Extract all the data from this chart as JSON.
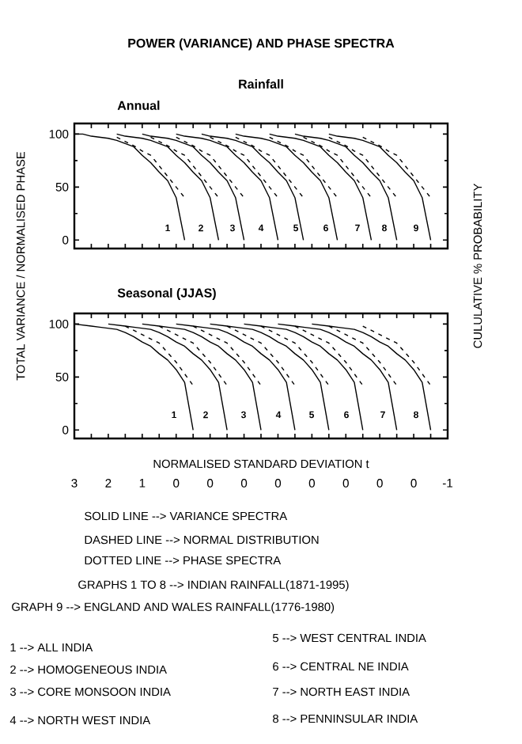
{
  "chart_data": [
    {
      "type": "line",
      "title": "Annual",
      "ylabel": "TOTAL VARIANCE / NORMALISED PHASE",
      "y2label": "CULULATIVE % PROBABILITY",
      "categories": [
        "3",
        null,
        null,
        null,
        "2",
        null,
        null,
        null,
        "1",
        null,
        null,
        null,
        "0",
        null,
        null,
        null,
        "0",
        null,
        null,
        null,
        "0",
        null,
        null,
        null,
        "0",
        null,
        null,
        null,
        "0",
        null,
        null,
        null,
        "0",
        null,
        null,
        null,
        "0",
        null,
        null,
        null,
        "0",
        null,
        null,
        null,
        "-1"
      ],
      "ylim": [
        -8,
        110
      ],
      "tick_labels": "y",
      "yticks": [
        0,
        50,
        100
      ],
      "series": [
        {
          "color": "#000000",
          "line_style": "solid",
          "values": [
            100,
            100,
            98,
            97,
            96,
            94,
            91,
            88,
            80,
            73,
            64,
            56,
            40,
            0,
            null,
            null,
            null,
            null,
            null,
            null,
            null,
            null,
            null,
            null,
            null,
            null,
            null,
            null,
            null,
            null,
            null,
            null,
            null,
            null,
            null,
            null,
            null,
            null,
            null,
            null,
            null,
            null,
            null,
            null,
            null
          ]
        },
        {
          "color": "#000000",
          "line_style": "dashed",
          "values": [
            null,
            null,
            null,
            null,
            null,
            97,
            93,
            89,
            84,
            80,
            70,
            60,
            50,
            40,
            null,
            null,
            null,
            null,
            null,
            null,
            null,
            null,
            null,
            null,
            null,
            null,
            null,
            null,
            null,
            null,
            null,
            null,
            null,
            null,
            null,
            null,
            null,
            null,
            null,
            null,
            null,
            null,
            null,
            null,
            null
          ]
        },
        {
          "color": "#000000",
          "line_style": "solid",
          "values": [
            null,
            null,
            null,
            null,
            null,
            100,
            98,
            97,
            96,
            94,
            91,
            88,
            80,
            73,
            64,
            56,
            40,
            0,
            null,
            null,
            null,
            null,
            null,
            null,
            null,
            null,
            null,
            null,
            null,
            null,
            null,
            null,
            null,
            null,
            null,
            null,
            null,
            null,
            null,
            null,
            null,
            null,
            null,
            null,
            null
          ]
        },
        {
          "color": "#000000",
          "line_style": "dashed",
          "values": [
            null,
            null,
            null,
            null,
            null,
            null,
            null,
            null,
            null,
            97,
            93,
            89,
            84,
            80,
            70,
            60,
            50,
            40,
            null,
            null,
            null,
            null,
            null,
            null,
            null,
            null,
            null,
            null,
            null,
            null,
            null,
            null,
            null,
            null,
            null,
            null,
            null,
            null,
            null,
            null,
            null,
            null,
            null,
            null,
            null
          ]
        },
        {
          "color": "#000000",
          "line_style": "solid",
          "values": [
            null,
            null,
            null,
            null,
            null,
            null,
            null,
            null,
            100,
            98,
            97,
            96,
            94,
            91,
            88,
            80,
            73,
            64,
            56,
            40,
            0,
            null,
            null,
            null,
            null,
            null,
            null,
            null,
            null,
            null,
            null,
            null,
            null,
            null,
            null,
            null,
            null,
            null,
            null,
            null,
            null,
            null,
            null,
            null,
            null
          ]
        },
        {
          "color": "#000000",
          "line_style": "dashed",
          "values": [
            null,
            null,
            null,
            null,
            null,
            null,
            null,
            null,
            null,
            null,
            null,
            null,
            97,
            93,
            89,
            84,
            80,
            70,
            60,
            50,
            40,
            null,
            null,
            null,
            null,
            null,
            null,
            null,
            null,
            null,
            null,
            null,
            null,
            null,
            null,
            null,
            null,
            null,
            null,
            null,
            null,
            null,
            null,
            null,
            null
          ]
        },
        {
          "color": "#000000",
          "line_style": "solid",
          "values": [
            null,
            null,
            null,
            null,
            null,
            null,
            null,
            null,
            null,
            null,
            null,
            null,
            100,
            98,
            97,
            96,
            94,
            91,
            88,
            80,
            73,
            64,
            56,
            40,
            0,
            null,
            null,
            null,
            null,
            null,
            null,
            null,
            null,
            null,
            null,
            null,
            null,
            null,
            null,
            null,
            null,
            null,
            null,
            null,
            null
          ]
        },
        {
          "color": "#000000",
          "line_style": "dashed",
          "values": [
            null,
            null,
            null,
            null,
            null,
            null,
            null,
            null,
            null,
            null,
            null,
            null,
            null,
            null,
            null,
            null,
            97,
            93,
            89,
            84,
            80,
            70,
            60,
            50,
            40,
            null,
            null,
            null,
            null,
            null,
            null,
            null,
            null,
            null,
            null,
            null,
            null,
            null,
            null,
            null,
            null,
            null,
            null,
            null,
            null
          ]
        },
        {
          "color": "#000000",
          "line_style": "solid",
          "values": [
            null,
            null,
            null,
            null,
            null,
            null,
            null,
            null,
            null,
            null,
            null,
            null,
            null,
            null,
            null,
            100,
            98,
            97,
            96,
            94,
            91,
            88,
            80,
            73,
            64,
            56,
            40,
            0,
            null,
            null,
            null,
            null,
            null,
            null,
            null,
            null,
            null,
            null,
            null,
            null,
            null,
            null,
            null,
            null,
            null
          ]
        },
        {
          "color": "#000000",
          "line_style": "dashed",
          "values": [
            null,
            null,
            null,
            null,
            null,
            null,
            null,
            null,
            null,
            null,
            null,
            null,
            null,
            null,
            null,
            null,
            null,
            null,
            null,
            97,
            93,
            89,
            84,
            80,
            70,
            60,
            50,
            40,
            null,
            null,
            null,
            null,
            null,
            null,
            null,
            null,
            null,
            null,
            null,
            null,
            null,
            null,
            null,
            null,
            null
          ]
        },
        {
          "color": "#000000",
          "line_style": "solid",
          "values": [
            null,
            null,
            null,
            null,
            null,
            null,
            null,
            null,
            null,
            null,
            null,
            null,
            null,
            null,
            null,
            null,
            null,
            null,
            null,
            100,
            98,
            97,
            96,
            94,
            91,
            88,
            80,
            73,
            64,
            56,
            40,
            0,
            null,
            null,
            null,
            null,
            null,
            null,
            null,
            null,
            null,
            null,
            null,
            null,
            null
          ]
        },
        {
          "color": "#000000",
          "line_style": "dashed",
          "values": [
            null,
            null,
            null,
            null,
            null,
            null,
            null,
            null,
            null,
            null,
            null,
            null,
            null,
            null,
            null,
            null,
            null,
            null,
            null,
            null,
            null,
            null,
            null,
            97,
            93,
            89,
            84,
            80,
            70,
            60,
            50,
            40,
            null,
            null,
            null,
            null,
            null,
            null,
            null,
            null,
            null,
            null,
            null,
            null,
            null
          ]
        },
        {
          "color": "#000000",
          "line_style": "solid",
          "values": [
            null,
            null,
            null,
            null,
            null,
            null,
            null,
            null,
            null,
            null,
            null,
            null,
            null,
            null,
            null,
            null,
            null,
            null,
            null,
            null,
            null,
            null,
            null,
            100,
            98,
            97,
            96,
            94,
            91,
            88,
            80,
            73,
            64,
            56,
            40,
            0,
            null,
            null,
            null,
            null,
            null,
            null,
            null,
            null,
            null
          ]
        },
        {
          "color": "#000000",
          "line_style": "dashed",
          "values": [
            null,
            null,
            null,
            null,
            null,
            null,
            null,
            null,
            null,
            null,
            null,
            null,
            null,
            null,
            null,
            null,
            null,
            null,
            null,
            null,
            null,
            null,
            null,
            null,
            null,
            null,
            null,
            97,
            93,
            89,
            84,
            80,
            70,
            60,
            50,
            40,
            null,
            null,
            null,
            null,
            null,
            null,
            null,
            null,
            null
          ]
        },
        {
          "color": "#000000",
          "line_style": "solid",
          "values": [
            null,
            null,
            null,
            null,
            null,
            null,
            null,
            null,
            null,
            null,
            null,
            null,
            null,
            null,
            null,
            null,
            null,
            null,
            null,
            null,
            null,
            null,
            null,
            null,
            null,
            null,
            100,
            98,
            97,
            96,
            94,
            91,
            88,
            80,
            73,
            64,
            56,
            40,
            0,
            null,
            null,
            null,
            null,
            null,
            null
          ]
        },
        {
          "color": "#000000",
          "line_style": "dashed",
          "values": [
            null,
            null,
            null,
            null,
            null,
            null,
            null,
            null,
            null,
            null,
            null,
            null,
            null,
            null,
            null,
            null,
            null,
            null,
            null,
            null,
            null,
            null,
            null,
            null,
            null,
            null,
            null,
            null,
            null,
            null,
            97,
            93,
            89,
            84,
            80,
            70,
            60,
            50,
            40,
            null,
            null,
            null,
            null,
            null,
            null
          ]
        },
        {
          "color": "#000000",
          "line_style": "solid",
          "values": [
            null,
            null,
            null,
            null,
            null,
            null,
            null,
            null,
            null,
            null,
            null,
            null,
            null,
            null,
            null,
            null,
            null,
            null,
            null,
            null,
            null,
            null,
            null,
            null,
            null,
            null,
            null,
            null,
            null,
            null,
            100,
            98,
            97,
            96,
            94,
            91,
            88,
            80,
            73,
            64,
            56,
            40,
            0,
            null,
            null
          ]
        },
        {
          "color": "#000000",
          "line_style": "dashed",
          "values": [
            null,
            null,
            null,
            null,
            null,
            null,
            null,
            null,
            null,
            null,
            null,
            null,
            null,
            null,
            null,
            null,
            null,
            null,
            null,
            null,
            null,
            null,
            null,
            null,
            null,
            null,
            null,
            null,
            null,
            null,
            null,
            null,
            null,
            null,
            97,
            93,
            89,
            84,
            80,
            70,
            60,
            50,
            40,
            null,
            null
          ]
        }
      ],
      "annotations": [
        "POWER (VARIANCE) AND PHASE SPECTRA",
        "Rainfall",
        "1",
        "2",
        "3",
        "4",
        "5",
        "6",
        "7",
        "8",
        "9"
      ]
    },
    {
      "type": "line",
      "title": "Seasonal (JJAS)",
      "xlabel": "NORMALISED STANDARD DEVIATION t",
      "categories": [
        "3",
        null,
        null,
        null,
        "2",
        null,
        null,
        null,
        "1",
        null,
        null,
        null,
        "0",
        null,
        null,
        null,
        "0",
        null,
        null,
        null,
        "0",
        null,
        null,
        null,
        "0",
        null,
        null,
        null,
        "0",
        null,
        null,
        null,
        "0",
        null,
        null,
        null,
        "0",
        null,
        null,
        null,
        "0",
        null,
        null,
        null,
        "-1"
      ],
      "ylim": [
        -8,
        110
      ],
      "yticks": [
        0,
        50,
        100
      ],
      "series": [
        {
          "color": "#000000",
          "line_style": "solid",
          "values": [
            100,
            99,
            98,
            97,
            96,
            95,
            92,
            88,
            83,
            79,
            72,
            66,
            57,
            45,
            0,
            null,
            null,
            null,
            null,
            null,
            null,
            null,
            null,
            null,
            null,
            null,
            null,
            null,
            null,
            null,
            null,
            null,
            null,
            null,
            null,
            null,
            null,
            null,
            null,
            null,
            null,
            null,
            null,
            null,
            null
          ]
        },
        {
          "color": "#000000",
          "line_style": "dashed",
          "values": [
            null,
            null,
            null,
            null,
            null,
            null,
            98,
            94,
            90,
            86,
            82,
            73,
            64,
            53,
            42,
            null,
            null,
            null,
            null,
            null,
            null,
            null,
            null,
            null,
            null,
            null,
            null,
            null,
            null,
            null,
            null,
            null,
            null,
            null,
            null,
            null,
            null,
            null,
            null,
            null,
            null,
            null,
            null,
            null,
            null
          ]
        },
        {
          "color": "#000000",
          "line_style": "solid",
          "values": [
            null,
            null,
            null,
            null,
            100,
            99,
            98,
            97,
            96,
            95,
            92,
            88,
            83,
            79,
            72,
            66,
            57,
            45,
            0,
            null,
            null,
            null,
            null,
            null,
            null,
            null,
            null,
            null,
            null,
            null,
            null,
            null,
            null,
            null,
            null,
            null,
            null,
            null,
            null,
            null,
            null,
            null,
            null,
            null,
            null
          ]
        },
        {
          "color": "#000000",
          "line_style": "dashed",
          "values": [
            null,
            null,
            null,
            null,
            null,
            null,
            null,
            null,
            null,
            null,
            98,
            94,
            90,
            86,
            82,
            73,
            64,
            53,
            42,
            null,
            null,
            null,
            null,
            null,
            null,
            null,
            null,
            null,
            null,
            null,
            null,
            null,
            null,
            null,
            null,
            null,
            null,
            null,
            null,
            null,
            null,
            null,
            null,
            null,
            null
          ]
        },
        {
          "color": "#000000",
          "line_style": "solid",
          "values": [
            null,
            null,
            null,
            null,
            null,
            null,
            null,
            null,
            100,
            99,
            98,
            97,
            96,
            95,
            92,
            88,
            83,
            79,
            72,
            66,
            57,
            45,
            0,
            null,
            null,
            null,
            null,
            null,
            null,
            null,
            null,
            null,
            null,
            null,
            null,
            null,
            null,
            null,
            null,
            null,
            null,
            null,
            null,
            null,
            null
          ]
        },
        {
          "color": "#000000",
          "line_style": "dashed",
          "values": [
            null,
            null,
            null,
            null,
            null,
            null,
            null,
            null,
            null,
            null,
            null,
            null,
            null,
            null,
            98,
            94,
            90,
            86,
            82,
            73,
            64,
            53,
            42,
            null,
            null,
            null,
            null,
            null,
            null,
            null,
            null,
            null,
            null,
            null,
            null,
            null,
            null,
            null,
            null,
            null,
            null,
            null,
            null,
            null,
            null
          ]
        },
        {
          "color": "#000000",
          "line_style": "solid",
          "values": [
            null,
            null,
            null,
            null,
            null,
            null,
            null,
            null,
            null,
            null,
            null,
            null,
            100,
            99,
            98,
            97,
            96,
            95,
            92,
            88,
            83,
            79,
            72,
            66,
            57,
            45,
            0,
            null,
            null,
            null,
            null,
            null,
            null,
            null,
            null,
            null,
            null,
            null,
            null,
            null,
            null,
            null,
            null,
            null,
            null
          ]
        },
        {
          "color": "#000000",
          "line_style": "dashed",
          "values": [
            null,
            null,
            null,
            null,
            null,
            null,
            null,
            null,
            null,
            null,
            null,
            null,
            null,
            null,
            null,
            null,
            null,
            null,
            98,
            94,
            90,
            86,
            82,
            73,
            64,
            53,
            42,
            null,
            null,
            null,
            null,
            null,
            null,
            null,
            null,
            null,
            null,
            null,
            null,
            null,
            null,
            null,
            null,
            null,
            null
          ]
        },
        {
          "color": "#000000",
          "line_style": "solid",
          "values": [
            null,
            null,
            null,
            null,
            null,
            null,
            null,
            null,
            null,
            null,
            null,
            null,
            null,
            null,
            null,
            null,
            100,
            99,
            98,
            97,
            96,
            95,
            92,
            88,
            83,
            79,
            72,
            66,
            57,
            45,
            0,
            null,
            null,
            null,
            null,
            null,
            null,
            null,
            null,
            null,
            null,
            null,
            null,
            null,
            null
          ]
        },
        {
          "color": "#000000",
          "line_style": "dashed",
          "values": [
            null,
            null,
            null,
            null,
            null,
            null,
            null,
            null,
            null,
            null,
            null,
            null,
            null,
            null,
            null,
            null,
            null,
            null,
            null,
            null,
            null,
            null,
            98,
            94,
            90,
            86,
            82,
            73,
            64,
            53,
            42,
            null,
            null,
            null,
            null,
            null,
            null,
            null,
            null,
            null,
            null,
            null,
            null,
            null,
            null
          ]
        },
        {
          "color": "#000000",
          "line_style": "solid",
          "values": [
            null,
            null,
            null,
            null,
            null,
            null,
            null,
            null,
            null,
            null,
            null,
            null,
            null,
            null,
            null,
            null,
            null,
            null,
            null,
            null,
            100,
            99,
            98,
            97,
            96,
            95,
            92,
            88,
            83,
            79,
            72,
            66,
            57,
            45,
            0,
            null,
            null,
            null,
            null,
            null,
            null,
            null,
            null,
            null,
            null
          ]
        },
        {
          "color": "#000000",
          "line_style": "dashed",
          "values": [
            null,
            null,
            null,
            null,
            null,
            null,
            null,
            null,
            null,
            null,
            null,
            null,
            null,
            null,
            null,
            null,
            null,
            null,
            null,
            null,
            null,
            null,
            null,
            null,
            null,
            null,
            98,
            94,
            90,
            86,
            82,
            73,
            64,
            53,
            42,
            null,
            null,
            null,
            null,
            null,
            null,
            null,
            null,
            null,
            null
          ]
        },
        {
          "color": "#000000",
          "line_style": "solid",
          "values": [
            null,
            null,
            null,
            null,
            null,
            null,
            null,
            null,
            null,
            null,
            null,
            null,
            null,
            null,
            null,
            null,
            null,
            null,
            null,
            null,
            null,
            null,
            null,
            null,
            100,
            99,
            98,
            97,
            96,
            95,
            92,
            88,
            83,
            79,
            72,
            66,
            57,
            45,
            0,
            null,
            null,
            null,
            null,
            null,
            null
          ]
        },
        {
          "color": "#000000",
          "line_style": "dashed",
          "values": [
            null,
            null,
            null,
            null,
            null,
            null,
            null,
            null,
            null,
            null,
            null,
            null,
            null,
            null,
            null,
            null,
            null,
            null,
            null,
            null,
            null,
            null,
            null,
            null,
            null,
            null,
            null,
            null,
            null,
            null,
            98,
            94,
            90,
            86,
            82,
            73,
            64,
            53,
            42,
            null,
            null,
            null,
            null,
            null,
            null
          ]
        },
        {
          "color": "#000000",
          "line_style": "solid",
          "values": [
            null,
            null,
            null,
            null,
            null,
            null,
            null,
            null,
            null,
            null,
            null,
            null,
            null,
            null,
            null,
            null,
            null,
            null,
            null,
            null,
            null,
            null,
            null,
            null,
            null,
            null,
            null,
            null,
            100,
            99,
            98,
            97,
            96,
            95,
            92,
            88,
            83,
            79,
            72,
            66,
            57,
            45,
            0,
            null,
            null
          ]
        },
        {
          "color": "#000000",
          "line_style": "dashed",
          "values": [
            null,
            null,
            null,
            null,
            null,
            null,
            null,
            null,
            null,
            null,
            null,
            null,
            null,
            null,
            null,
            null,
            null,
            null,
            null,
            null,
            null,
            null,
            null,
            null,
            null,
            null,
            null,
            null,
            null,
            null,
            null,
            null,
            null,
            null,
            98,
            94,
            90,
            86,
            82,
            73,
            64,
            53,
            42,
            null,
            null
          ]
        }
      ],
      "annotations": [
        "1",
        "2",
        "3",
        "4",
        "5",
        "6",
        "7",
        "8",
        "SOLID LINE --> VARIANCE SPECTRA",
        "DASHED LINE --> NORMAL DISTRIBUTION",
        "DOTTED LINE --> PHASE SPECTRA",
        "GRAPHS 1 TO 8 --> INDIAN RAINFALL(1871-1995)",
        "GRAPH 9 --> ENGLAND AND WALES RAINFALL(1776-1980)",
        "1 --> ALL INDIA",
        "2 --> HOMOGENEOUS INDIA",
        "3 --> CORE MONSOON INDIA",
        "4 --> NORTH WEST INDIA",
        "5 --> WEST CENTRAL INDIA",
        "6 --> CENTRAL NE INDIA",
        "7 --> NORTH EAST INDIA",
        "8 --> PENNINSULAR INDIA"
      ]
    }
  ]
}
